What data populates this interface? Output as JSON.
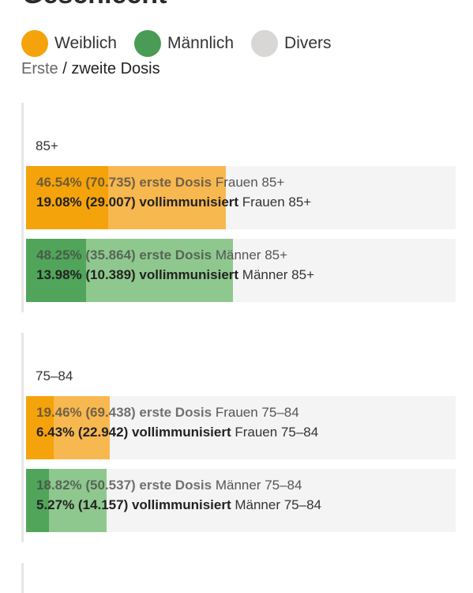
{
  "header": {
    "cut_title": "Geschlecht",
    "subtitle_part1": "Erste",
    "subtitle_part2": "/ zweite Dosis"
  },
  "legend": [
    {
      "label": "Weiblich",
      "color": "#f5a30a"
    },
    {
      "label": "Männlich",
      "color": "#4a9b55"
    },
    {
      "label": "Divers",
      "color": "#d9d7d5"
    }
  ],
  "colors": {
    "female_full": "#f5a30a",
    "female_first": "#f8b850",
    "male_full": "#50a55a",
    "male_first": "#8fc88e",
    "bar_bg": "#f4f4f4"
  },
  "chart_data": {
    "type": "bar",
    "groups": [
      {
        "label": "85+",
        "bars": [
          {
            "sex": "female",
            "first_pct": 46.54,
            "first_count": "70.735",
            "first_text_num": "46.54% (70.735) erste Dosis",
            "first_text_lbl": "Frauen 85+",
            "full_pct": 19.08,
            "full_count": "29.007",
            "full_text_num": "19.08% (29.007) vollimmunisiert",
            "full_text_lbl": "Frauen 85+"
          },
          {
            "sex": "male",
            "first_pct": 48.25,
            "first_count": "35.864",
            "first_text_num": "48.25% (35.864) erste Dosis",
            "first_text_lbl": "Männer 85+",
            "full_pct": 13.98,
            "full_count": "10.389",
            "full_text_num": "13.98% (10.389) vollimmunisiert",
            "full_text_lbl": "Männer 85+"
          }
        ]
      },
      {
        "label": "75–84",
        "bars": [
          {
            "sex": "female",
            "first_pct": 19.46,
            "first_count": "69.438",
            "first_text_num": "19.46% (69.438) erste Dosis",
            "first_text_lbl": "Frauen 75–84",
            "full_pct": 6.43,
            "full_count": "22.942",
            "full_text_num": "6.43% (22.942) vollimmunisiert",
            "full_text_lbl": "Frauen 75–84"
          },
          {
            "sex": "male",
            "first_pct": 18.82,
            "first_count": "50.537",
            "first_text_num": "18.82% (50.537) erste Dosis",
            "first_text_lbl": "Männer 75–84",
            "full_pct": 5.27,
            "full_count": "14.157",
            "full_text_num": "5.27% (14.157) vollimmunisiert",
            "full_text_lbl": "Männer 75–84"
          }
        ]
      }
    ]
  }
}
